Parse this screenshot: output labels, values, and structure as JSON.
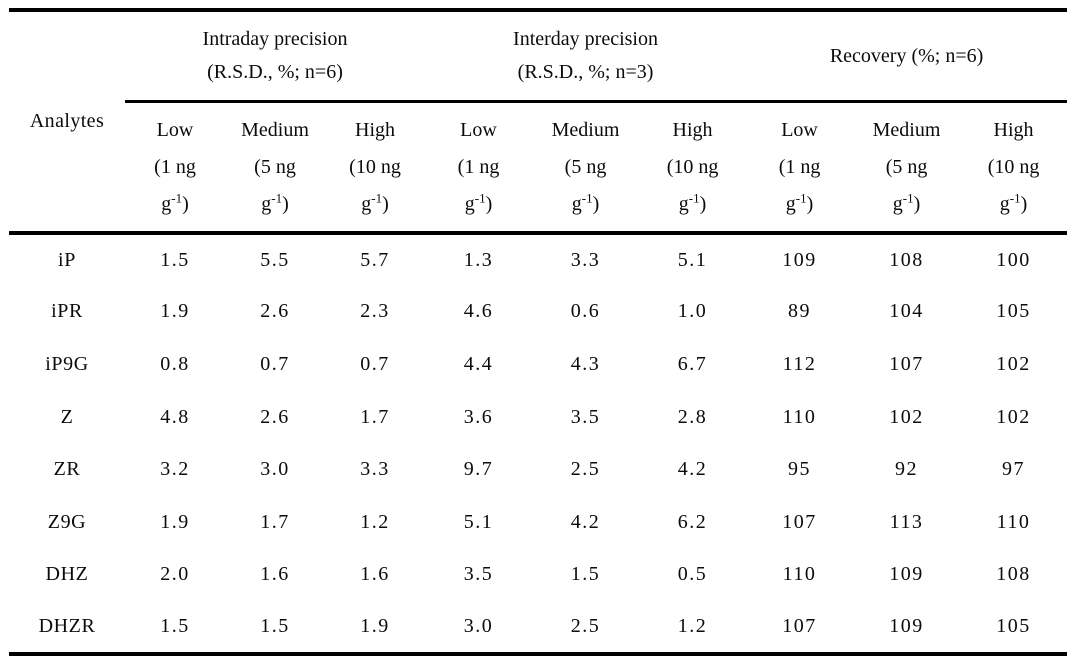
{
  "page": {
    "background_color": "#ffffff",
    "text_color": "#000000",
    "rule_color": "#000000"
  },
  "table": {
    "corner_header": "Analytes",
    "groups": [
      {
        "line1": "Intraday precision",
        "line2": "(R.S.D., %; n=6)"
      },
      {
        "line1": "Interday precision",
        "line2": "(R.S.D., %; n=3)"
      },
      {
        "line1": "Recovery (%; n=6)"
      }
    ],
    "sub_columns": [
      {
        "level": "Low",
        "amount": "(1 ng",
        "unit_base": "g",
        "unit_exponent": "-1",
        "unit_close": ")"
      },
      {
        "level": "Medium",
        "amount": "(5 ng",
        "unit_base": "g",
        "unit_exponent": "-1",
        "unit_close": ")"
      },
      {
        "level": "High",
        "amount": "(10 ng",
        "unit_base": "g",
        "unit_exponent": "-1",
        "unit_close": ")"
      },
      {
        "level": "Low",
        "amount": "(1 ng",
        "unit_base": "g",
        "unit_exponent": "-1",
        "unit_close": ")"
      },
      {
        "level": "Medium",
        "amount": "(5 ng",
        "unit_base": "g",
        "unit_exponent": "-1",
        "unit_close": ")"
      },
      {
        "level": "High",
        "amount": "(10 ng",
        "unit_base": "g",
        "unit_exponent": "-1",
        "unit_close": ")"
      },
      {
        "level": "Low",
        "amount": "(1 ng",
        "unit_base": "g",
        "unit_exponent": "-1",
        "unit_close": ")"
      },
      {
        "level": "Medium",
        "amount": "(5 ng",
        "unit_base": "g",
        "unit_exponent": "-1",
        "unit_close": ")"
      },
      {
        "level": "High",
        "amount": "(10 ng",
        "unit_base": "g",
        "unit_exponent": "-1",
        "unit_close": ")"
      }
    ],
    "rows": [
      {
        "analyte": "iP",
        "values": [
          "1.5",
          "5.5",
          "5.7",
          "1.3",
          "3.3",
          "5.1",
          "109",
          "108",
          "100"
        ]
      },
      {
        "analyte": "iPR",
        "values": [
          "1.9",
          "2.6",
          "2.3",
          "4.6",
          "0.6",
          "1.0",
          "89",
          "104",
          "105"
        ]
      },
      {
        "analyte": "iP9G",
        "values": [
          "0.8",
          "0.7",
          "0.7",
          "4.4",
          "4.3",
          "6.7",
          "112",
          "107",
          "102"
        ]
      },
      {
        "analyte": "Z",
        "values": [
          "4.8",
          "2.6",
          "1.7",
          "3.6",
          "3.5",
          "2.8",
          "110",
          "102",
          "102"
        ]
      },
      {
        "analyte": "ZR",
        "values": [
          "3.2",
          "3.0",
          "3.3",
          "9.7",
          "2.5",
          "4.2",
          "95",
          "92",
          "97"
        ]
      },
      {
        "analyte": "Z9G",
        "values": [
          "1.9",
          "1.7",
          "1.2",
          "5.1",
          "4.2",
          "6.2",
          "107",
          "113",
          "110"
        ]
      },
      {
        "analyte": "DHZ",
        "values": [
          "2.0",
          "1.6",
          "1.6",
          "3.5",
          "1.5",
          "0.5",
          "110",
          "109",
          "108"
        ]
      },
      {
        "analyte": "DHZR",
        "values": [
          "1.5",
          "1.5",
          "1.9",
          "3.0",
          "2.5",
          "1.2",
          "107",
          "109",
          "105"
        ]
      }
    ]
  }
}
